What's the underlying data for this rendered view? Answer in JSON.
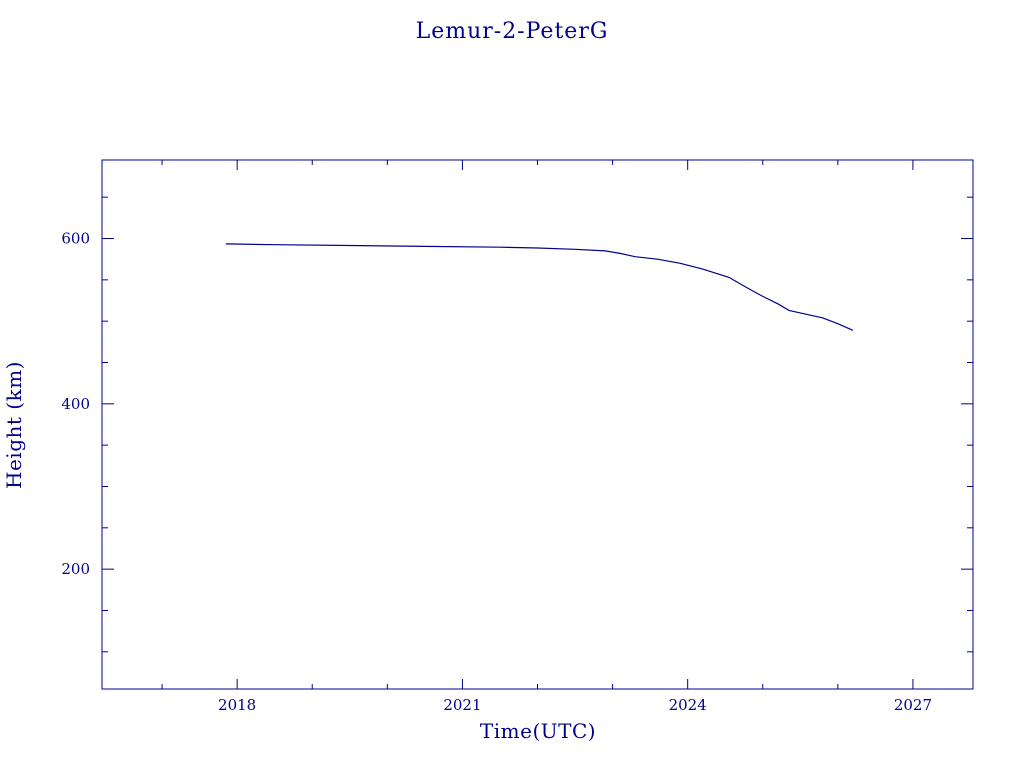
{
  "chart_data": {
    "type": "line",
    "title": "Lemur-2-PeterG",
    "xlabel": "Time(UTC)",
    "ylabel": "Height (km)",
    "xlim": [
      2016.2,
      2027.8
    ],
    "ylim": [
      55,
      695
    ],
    "x_ticks": [
      2018,
      2021,
      2024,
      2027
    ],
    "x_tick_labels": [
      "2018",
      "2021",
      "2024",
      "2027"
    ],
    "x_minor_step": 1,
    "y_ticks": [
      200,
      400,
      600
    ],
    "y_tick_labels": [
      "200",
      "400",
      "600"
    ],
    "y_minor_step": 50,
    "grid": false,
    "color": "#00008b",
    "series": [
      {
        "x": [
          2017.85,
          2018.5,
          2019.5,
          2020.5,
          2021.5,
          2022.0,
          2022.5,
          2022.9,
          2023.1,
          2023.3,
          2023.6,
          2023.9,
          2024.2,
          2024.55,
          2024.8,
          2025.0,
          2025.2,
          2025.35,
          2025.5,
          2025.8,
          2026.0,
          2026.2
        ],
        "y": [
          593.5,
          592.5,
          591.5,
          590.5,
          589.5,
          588.5,
          587,
          585,
          582,
          578,
          575,
          570,
          563,
          553,
          540,
          530,
          521,
          513,
          510,
          504,
          497,
          489
        ]
      }
    ]
  }
}
